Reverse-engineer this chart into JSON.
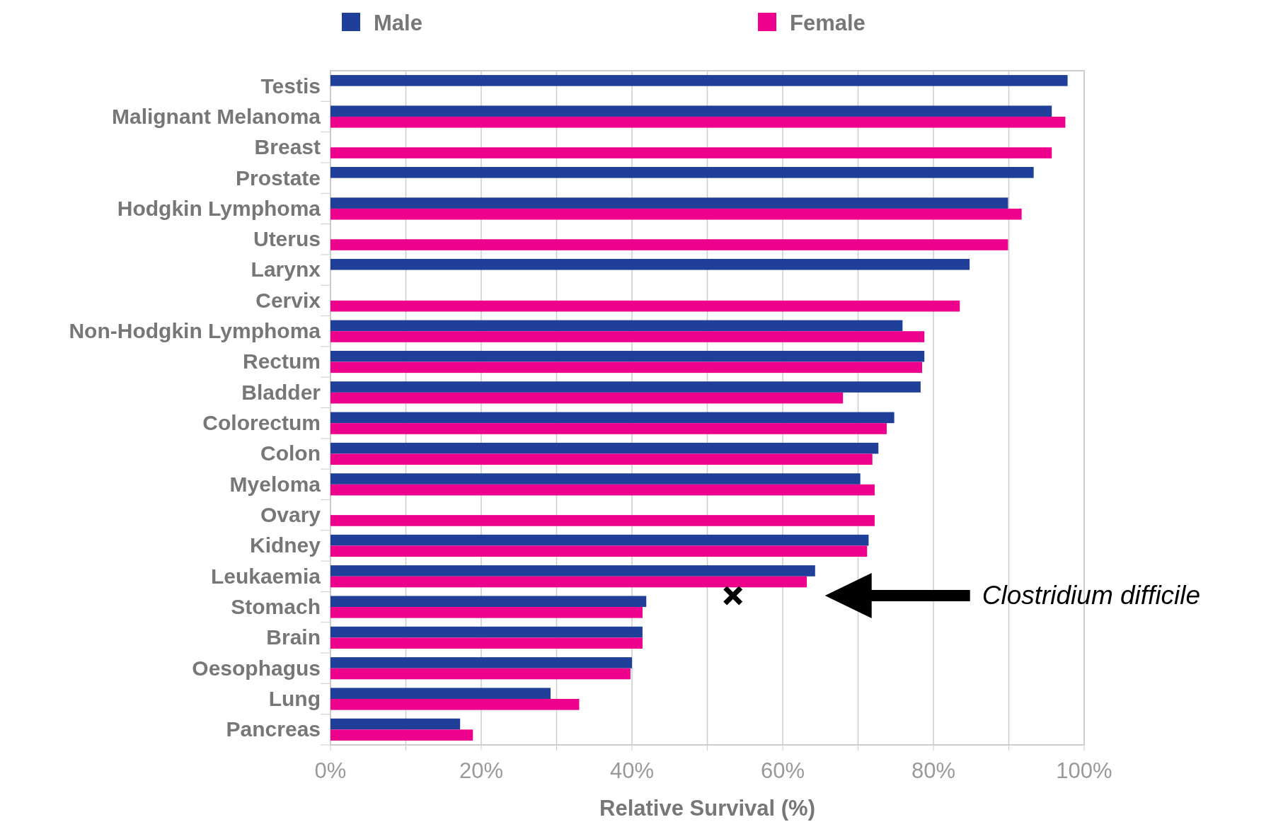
{
  "chart_data": {
    "type": "bar",
    "orientation": "horizontal",
    "xlabel": "Relative Survival (%)",
    "categories": [
      "Testis",
      "Malignant Melanoma",
      "Breast",
      "Prostate",
      "Hodgkin Lymphoma",
      "Uterus",
      "Larynx",
      "Cervix",
      "Non-Hodgkin Lymphoma",
      "Rectum",
      "Bladder",
      "Colorectum",
      "Colon",
      "Myeloma",
      "Ovary",
      "Kidney",
      "Leukaemia",
      "Stomach",
      "Brain",
      "Oesophagus",
      "Lung",
      "Pancreas"
    ],
    "series": [
      {
        "name": "Male",
        "color": "#1f3f99",
        "values": [
          97.8,
          95.7,
          null,
          93.3,
          89.9,
          null,
          84.8,
          null,
          75.9,
          78.8,
          78.3,
          74.8,
          72.7,
          70.3,
          null,
          71.4,
          64.3,
          41.9,
          41.4,
          40.0,
          29.2,
          17.2
        ]
      },
      {
        "name": "Female",
        "color": "#ec008c",
        "values": [
          null,
          97.5,
          95.7,
          null,
          91.7,
          89.9,
          null,
          83.5,
          78.8,
          78.5,
          68.0,
          73.8,
          71.9,
          72.2,
          72.2,
          71.2,
          63.2,
          41.4,
          41.4,
          39.8,
          33.0,
          18.9
        ]
      },
      {
        "type": "scatter",
        "marker": "cross",
        "color": "#000000",
        "values": [
          null,
          null,
          null,
          null,
          null,
          null,
          null,
          null,
          null,
          null,
          null,
          null,
          null,
          null,
          null,
          null,
          null,
          53.4,
          null,
          null,
          null,
          null
        ]
      }
    ],
    "xlim": [
      0,
      100
    ],
    "xticks": [
      {
        "value": 0,
        "label": "0%"
      },
      {
        "value": 10,
        "label": null
      },
      {
        "value": 20,
        "label": "20%"
      },
      {
        "value": 30,
        "label": null
      },
      {
        "value": 40,
        "label": "40%"
      },
      {
        "value": 50,
        "label": null
      },
      {
        "value": 60,
        "label": "60%"
      },
      {
        "value": 70,
        "label": null
      },
      {
        "value": 80,
        "label": "80%"
      },
      {
        "value": 90,
        "label": null
      },
      {
        "value": 100,
        "label": "100%"
      }
    ],
    "grid": "x",
    "legend": "top",
    "annotations": [
      "Clostridium difficile"
    ]
  }
}
